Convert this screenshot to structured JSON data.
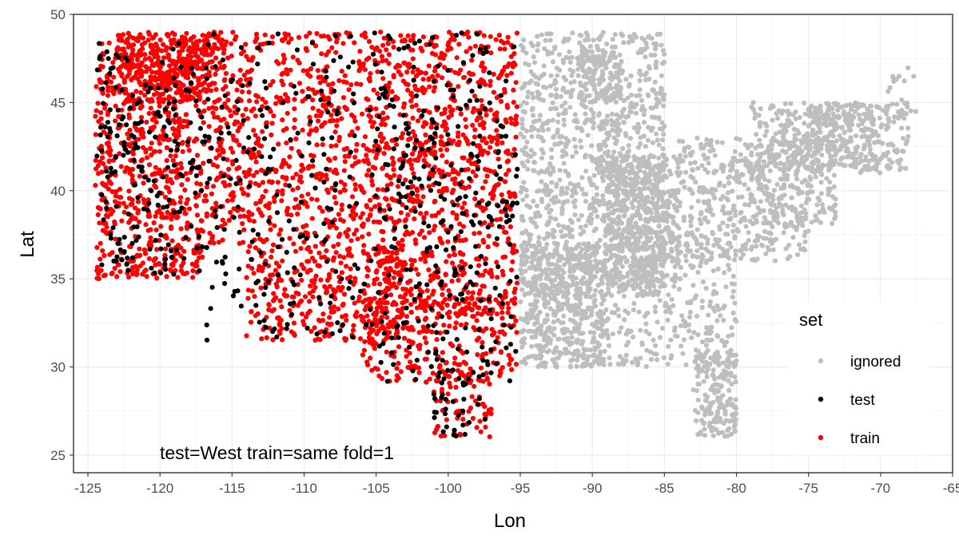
{
  "chart_data": {
    "type": "scatter",
    "title": "",
    "xlabel": "Lon",
    "ylabel": "Lat",
    "xlim": [
      -126,
      -65
    ],
    "ylim": [
      24,
      50
    ],
    "x_ticks": [
      -125,
      -120,
      -115,
      -110,
      -105,
      -100,
      -95,
      -90,
      -85,
      -80,
      -75,
      -70,
      -65
    ],
    "x_tick_labels": [
      "-125",
      "-120",
      "-115",
      "-110",
      "-105",
      "-100",
      "-95",
      "-90",
      "-85",
      "-80",
      "-75",
      "-70",
      "-65"
    ],
    "y_ticks": [
      25,
      30,
      35,
      40,
      45,
      50
    ],
    "y_tick_labels": [
      "25",
      "30",
      "35",
      "40",
      "45",
      "50"
    ],
    "grid": true,
    "legend": {
      "title": "set",
      "position": "bottom-right-inside",
      "entries": [
        "ignored",
        "test",
        "train"
      ]
    },
    "annotation": "test=West train=same fold=1",
    "colors": {
      "ignored": "#bebebe",
      "test": "#000000",
      "train": "#ff0000"
    },
    "series": [
      {
        "name": "ignored",
        "regions": [
          {
            "lon": [
              -95,
              -85
            ],
            "lat": [
              34,
              49
            ],
            "n": 1100
          },
          {
            "lon": [
              -95,
              -89
            ],
            "lat": [
              30,
              37
            ],
            "n": 420
          },
          {
            "lon": [
              -94,
              -80
            ],
            "lat": [
              30,
              37
            ],
            "n": 380
          },
          {
            "lon": [
              -89,
              -84
            ],
            "lat": [
              34.5,
              42
            ],
            "n": 500
          },
          {
            "lon": [
              -84,
              -75
            ],
            "lat": [
              36,
              43
            ],
            "n": 420
          },
          {
            "lon": [
              -79,
              -73
            ],
            "lat": [
              38,
              45
            ],
            "n": 280
          },
          {
            "lon": [
              -77,
              -68
            ],
            "lat": [
              41,
              45
            ],
            "n": 220
          },
          {
            "lon": [
              -75,
              -70
            ],
            "lat": [
              41,
              45
            ],
            "n": 140
          },
          {
            "lon": [
              -83,
              -80
            ],
            "lat": [
              26,
              31
            ],
            "n": 180
          },
          {
            "lon": [
              -91,
              -88
            ],
            "lat": [
              45,
              48
            ],
            "n": 120
          },
          {
            "lon": [
              -70,
              -67.5
            ],
            "lat": [
              44,
              47
            ],
            "n": 25
          }
        ]
      },
      {
        "name": "train",
        "regions": [
          {
            "lon": [
              -124.5,
              -117
            ],
            "lat": [
              35,
              48.5
            ],
            "n": 700
          },
          {
            "lon": [
              -123,
              -116
            ],
            "lat": [
              45,
              49
            ],
            "n": 280
          },
          {
            "lon": [
              -117,
              -105
            ],
            "lat": [
              37,
              49
            ],
            "n": 700
          },
          {
            "lon": [
              -114,
              -103
            ],
            "lat": [
              31.5,
              37
            ],
            "n": 320
          },
          {
            "lon": [
              -105,
              -95.2
            ],
            "lat": [
              33,
              49
            ],
            "n": 900
          },
          {
            "lon": [
              -106,
              -95.2
            ],
            "lat": [
              29,
              34
            ],
            "n": 260
          },
          {
            "lon": [
              -101,
              -97
            ],
            "lat": [
              26,
              30
            ],
            "n": 70
          }
        ]
      },
      {
        "name": "test",
        "regions": [
          {
            "lon": [
              -124.5,
              -117
            ],
            "lat": [
              35,
              48.5
            ],
            "n": 190
          },
          {
            "lon": [
              -117,
              -105
            ],
            "lat": [
              31.5,
              49
            ],
            "n": 210
          },
          {
            "lon": [
              -105,
              -95.2
            ],
            "lat": [
              29,
              49
            ],
            "n": 300
          },
          {
            "lon": [
              -101,
              -97
            ],
            "lat": [
              26,
              30
            ],
            "n": 30
          }
        ]
      }
    ]
  }
}
